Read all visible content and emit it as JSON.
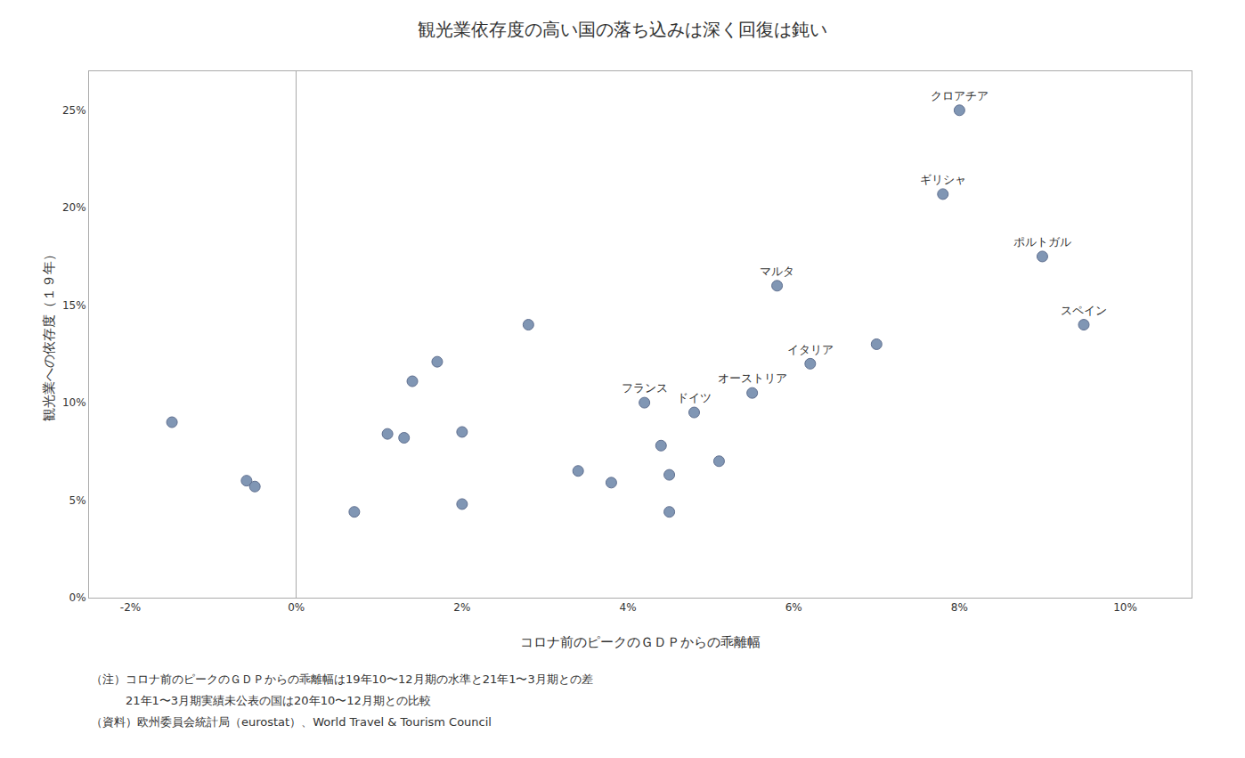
{
  "chart_data": {
    "type": "scatter",
    "title": "観光業依存度の高い国の落ち込みは深く回復は鈍い",
    "x_label": "コロナ前のピークのＧＤＰからの乖離幅",
    "y_label": "観光業への依存度（１９年）",
    "annotations": [
      "（注）コロナ前のピークのＧＤＰからの乖離幅は19年10〜12月期の水準と21年1〜3月期との差",
      "　　　21年1〜3月期実績未公表の国は20年10〜12月期との比較",
      "（資料）欧州委員会統計局（eurostat）、World Travel & Tourism Council"
    ],
    "x": [
      -1.5,
      -0.6,
      -0.5,
      0.7,
      1.1,
      1.3,
      1.4,
      1.7,
      2.0,
      2.0,
      2.8,
      3.4,
      3.8,
      4.2,
      4.4,
      4.5,
      4.5,
      4.8,
      5.1,
      5.5,
      5.8,
      6.2,
      7.0,
      7.8,
      8.0,
      9.0,
      9.5
    ],
    "values": [
      9.0,
      6.0,
      5.7,
      4.4,
      8.4,
      8.2,
      11.1,
      12.1,
      8.5,
      4.8,
      14.0,
      6.5,
      5.9,
      10.0,
      7.8,
      6.3,
      4.4,
      9.5,
      7.0,
      10.5,
      16.0,
      12.0,
      13.0,
      20.7,
      25.0,
      17.5,
      14.0
    ],
    "labels": [
      null,
      null,
      null,
      null,
      null,
      null,
      null,
      null,
      null,
      null,
      null,
      null,
      null,
      "フランス",
      null,
      null,
      null,
      "ドイツ",
      null,
      "オーストリア",
      "マルタ",
      "イタリア",
      null,
      "ギリシャ",
      "クロアチア",
      "ポルトガル",
      "スペイン"
    ],
    "color": "#8096b4",
    "xlim": [
      -2.5,
      10.8
    ],
    "xticks": [
      {
        "value": -2,
        "label": "-2%"
      },
      {
        "value": 0,
        "label": "0%"
      },
      {
        "value": 2,
        "label": "2%"
      },
      {
        "value": 4,
        "label": "4%"
      },
      {
        "value": 6,
        "label": "6%"
      },
      {
        "value": 8,
        "label": "8%"
      },
      {
        "value": 10,
        "label": "10%"
      }
    ],
    "ylim": [
      0.0,
      27.0
    ],
    "yticks": [
      {
        "value": 0,
        "label": "0%"
      },
      {
        "value": 5,
        "label": "5%"
      },
      {
        "value": 10,
        "label": "10%"
      },
      {
        "value": 15,
        "label": "15%"
      },
      {
        "value": 20,
        "label": "20%"
      },
      {
        "value": 25,
        "label": "25%"
      }
    ],
    "grid": false
  }
}
